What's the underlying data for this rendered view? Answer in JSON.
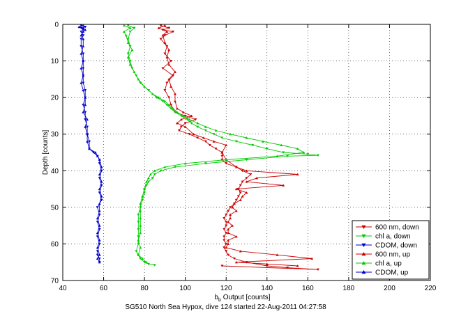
{
  "chart_data": {
    "type": "line",
    "title": "",
    "caption": "SG510 North Sea Hypox, dive 124 started 22-Aug-2011 04:27:58",
    "xlabel": "b_b Output [counts]",
    "xlabel_main": "b",
    "xlabel_sub": "b",
    "xlabel_rest": " Output [counts]",
    "ylabel": "Depth [counts]",
    "xlim": [
      40,
      220
    ],
    "ylim": [
      0,
      70
    ],
    "y_reversed": true,
    "xticks": [
      40,
      60,
      80,
      100,
      120,
      140,
      160,
      180,
      200,
      220
    ],
    "yticks": [
      0,
      10,
      20,
      30,
      40,
      50,
      60,
      70
    ],
    "grid": true,
    "legend_position": "lower-right",
    "series": [
      {
        "name": "600 nm, down",
        "color": "#cc0000",
        "marker": "triangle-down",
        "points": [
          [
            88,
            0.3
          ],
          [
            92,
            1
          ],
          [
            89,
            1.5
          ],
          [
            94,
            2
          ],
          [
            90,
            3
          ],
          [
            88,
            4
          ],
          [
            91,
            6
          ],
          [
            90,
            8
          ],
          [
            93,
            10
          ],
          [
            89,
            12
          ],
          [
            94,
            14
          ],
          [
            91,
            16
          ],
          [
            90,
            18
          ],
          [
            92,
            20
          ],
          [
            93,
            22
          ],
          [
            95,
            24
          ],
          [
            100,
            25
          ],
          [
            105,
            26
          ],
          [
            100,
            27
          ],
          [
            98,
            28
          ],
          [
            97,
            29
          ],
          [
            102,
            30
          ],
          [
            106,
            31
          ],
          [
            110,
            32
          ],
          [
            112,
            33
          ],
          [
            115,
            34
          ],
          [
            118,
            35
          ],
          [
            118,
            36
          ],
          [
            118,
            37
          ],
          [
            120,
            38
          ],
          [
            125,
            39
          ],
          [
            128,
            40
          ],
          [
            132,
            41
          ],
          [
            130,
            42
          ],
          [
            128,
            43
          ],
          [
            127,
            44
          ],
          [
            126,
            45
          ],
          [
            127,
            46
          ],
          [
            126,
            47
          ],
          [
            125,
            48
          ],
          [
            124,
            49
          ],
          [
            122,
            50
          ],
          [
            121,
            51
          ],
          [
            120,
            52
          ],
          [
            119,
            53
          ],
          [
            120,
            54
          ],
          [
            120,
            55
          ],
          [
            119,
            56
          ],
          [
            120,
            57
          ],
          [
            119,
            58
          ],
          [
            119,
            59
          ],
          [
            120,
            60
          ],
          [
            119,
            61
          ],
          [
            120,
            62
          ],
          [
            121,
            63
          ],
          [
            124,
            64
          ],
          [
            130,
            65
          ],
          [
            140,
            66
          ],
          [
            150,
            66.5
          ],
          [
            165,
            67
          ],
          [
            118,
            66
          ]
        ]
      },
      {
        "name": "chl a, down",
        "color": "#00cc00",
        "marker": "triangle-down",
        "points": [
          [
            72,
            0.3
          ],
          [
            75,
            1
          ],
          [
            73,
            2
          ],
          [
            72,
            4
          ],
          [
            73,
            6
          ],
          [
            72,
            8
          ],
          [
            73,
            10
          ],
          [
            74,
            12
          ],
          [
            76,
            14
          ],
          [
            78,
            16
          ],
          [
            82,
            18
          ],
          [
            86,
            20
          ],
          [
            89,
            21
          ],
          [
            91,
            22
          ],
          [
            93,
            23
          ],
          [
            95,
            24
          ],
          [
            98,
            25
          ],
          [
            101,
            26
          ],
          [
            103,
            27
          ],
          [
            106,
            28
          ],
          [
            110,
            29
          ],
          [
            114,
            30
          ],
          [
            118,
            31
          ],
          [
            125,
            32
          ],
          [
            133,
            33
          ],
          [
            140,
            34
          ],
          [
            148,
            35
          ],
          [
            160,
            35.5
          ],
          [
            165,
            35.8
          ],
          [
            150,
            36
          ],
          [
            130,
            37
          ],
          [
            110,
            38
          ],
          [
            95,
            39
          ],
          [
            88,
            40
          ],
          [
            85,
            41
          ],
          [
            84,
            42
          ],
          [
            82,
            43
          ],
          [
            81,
            44
          ],
          [
            80,
            45
          ],
          [
            80,
            46
          ],
          [
            79,
            48
          ],
          [
            78,
            50
          ],
          [
            77,
            52
          ],
          [
            77,
            54
          ],
          [
            77,
            56
          ],
          [
            77,
            58
          ],
          [
            77,
            60
          ],
          [
            76,
            62
          ],
          [
            77,
            63
          ],
          [
            78,
            64
          ],
          [
            80,
            65
          ],
          [
            82,
            65.5
          ],
          [
            85,
            65.8
          ]
        ]
      },
      {
        "name": "CDOM, down",
        "color": "#0000cc",
        "marker": "triangle-down",
        "points": [
          [
            49,
            0.3
          ],
          [
            51,
            0.7
          ],
          [
            49,
            1
          ],
          [
            50,
            1.5
          ],
          [
            49,
            2
          ],
          [
            50,
            3
          ],
          [
            49,
            4
          ],
          [
            49,
            6
          ],
          [
            50,
            8
          ],
          [
            50,
            10
          ],
          [
            50,
            12
          ],
          [
            50,
            14
          ],
          [
            50,
            16
          ],
          [
            51,
            18
          ],
          [
            51,
            20
          ],
          [
            50,
            22
          ],
          [
            51,
            24
          ],
          [
            51,
            26
          ],
          [
            52,
            28
          ],
          [
            52,
            30
          ],
          [
            53,
            32
          ],
          [
            53,
            34
          ],
          [
            55,
            35
          ],
          [
            57,
            36
          ],
          [
            58,
            37
          ],
          [
            58,
            38
          ],
          [
            59,
            40
          ],
          [
            58,
            42
          ],
          [
            59,
            44
          ],
          [
            58,
            46
          ],
          [
            59,
            48
          ],
          [
            57,
            50
          ],
          [
            58,
            52
          ],
          [
            57,
            54
          ],
          [
            58,
            56
          ],
          [
            57,
            58
          ],
          [
            58,
            60
          ],
          [
            57,
            62
          ],
          [
            57,
            63
          ],
          [
            58,
            64
          ],
          [
            58,
            65
          ]
        ]
      },
      {
        "name": "600 nm, up",
        "color": "#cc0000",
        "marker": "triangle-up",
        "points": [
          [
            90,
            0.3
          ],
          [
            87,
            1
          ],
          [
            91,
            2
          ],
          [
            89,
            3
          ],
          [
            90,
            5
          ],
          [
            92,
            7
          ],
          [
            91,
            9
          ],
          [
            92,
            11
          ],
          [
            95,
            13
          ],
          [
            92,
            15
          ],
          [
            93,
            17
          ],
          [
            95,
            19
          ],
          [
            95,
            21
          ],
          [
            96,
            23
          ],
          [
            99,
            24
          ],
          [
            103,
            25
          ],
          [
            98,
            26
          ],
          [
            96,
            27
          ],
          [
            100,
            28
          ],
          [
            104,
            30
          ],
          [
            109,
            31
          ],
          [
            114,
            32
          ],
          [
            120,
            33
          ],
          [
            118,
            35
          ],
          [
            120,
            37
          ],
          [
            125,
            39
          ],
          [
            130,
            40
          ],
          [
            155,
            41
          ],
          [
            135,
            42
          ],
          [
            130,
            43
          ],
          [
            148,
            44
          ],
          [
            125,
            45
          ],
          [
            130,
            46
          ],
          [
            128,
            47
          ],
          [
            127,
            48
          ],
          [
            124,
            49
          ],
          [
            123,
            50
          ],
          [
            125,
            51
          ],
          [
            122,
            52
          ],
          [
            122,
            53
          ],
          [
            121,
            54
          ],
          [
            123,
            55
          ],
          [
            121,
            56
          ],
          [
            121,
            57
          ],
          [
            125,
            58
          ],
          [
            121,
            59
          ],
          [
            121,
            60
          ],
          [
            120,
            61
          ],
          [
            127,
            62
          ],
          [
            145,
            63
          ],
          [
            162,
            64
          ],
          [
            125,
            65
          ],
          [
            140,
            65.5
          ],
          [
            155,
            66
          ]
        ]
      },
      {
        "name": "chl a, up",
        "color": "#00cc00",
        "marker": "triangle-up",
        "points": [
          [
            70,
            0.3
          ],
          [
            73,
            1
          ],
          [
            70,
            2
          ],
          [
            71,
            3
          ],
          [
            72,
            5
          ],
          [
            74,
            7
          ],
          [
            72,
            9
          ],
          [
            73,
            11
          ],
          [
            75,
            13
          ],
          [
            77,
            15
          ],
          [
            80,
            17
          ],
          [
            84,
            19
          ],
          [
            87,
            20
          ],
          [
            90,
            21
          ],
          [
            92,
            22
          ],
          [
            94,
            23
          ],
          [
            96,
            24
          ],
          [
            99,
            25
          ],
          [
            102,
            26
          ],
          [
            106,
            27
          ],
          [
            110,
            28
          ],
          [
            115,
            29
          ],
          [
            122,
            30
          ],
          [
            130,
            31
          ],
          [
            138,
            32
          ],
          [
            147,
            33
          ],
          [
            155,
            34
          ],
          [
            158,
            35
          ],
          [
            145,
            36
          ],
          [
            120,
            37
          ],
          [
            100,
            38
          ],
          [
            90,
            39
          ],
          [
            85,
            40
          ],
          [
            83,
            41
          ],
          [
            82,
            42
          ],
          [
            81,
            43
          ],
          [
            80,
            45
          ],
          [
            79,
            47
          ],
          [
            78,
            49
          ],
          [
            78,
            51
          ],
          [
            78,
            53
          ],
          [
            78,
            55
          ],
          [
            78,
            57
          ],
          [
            77,
            59
          ],
          [
            78,
            61
          ],
          [
            77,
            63
          ],
          [
            79,
            64
          ],
          [
            81,
            65
          ]
        ]
      },
      {
        "name": "CDOM, up",
        "color": "#0000cc",
        "marker": "triangle-up",
        "points": [
          [
            50,
            0.3
          ],
          [
            48,
            0.7
          ],
          [
            50,
            1
          ],
          [
            51,
            1.5
          ],
          [
            50,
            2
          ],
          [
            49,
            3
          ],
          [
            50,
            4
          ],
          [
            50,
            6
          ],
          [
            49,
            8
          ],
          [
            50,
            10
          ],
          [
            49,
            12
          ],
          [
            50,
            14
          ],
          [
            49,
            16
          ],
          [
            50,
            18
          ],
          [
            51,
            20
          ],
          [
            51,
            22
          ],
          [
            50,
            24
          ],
          [
            52,
            26
          ],
          [
            51,
            28
          ],
          [
            52,
            30
          ],
          [
            52,
            32
          ],
          [
            53,
            34
          ],
          [
            56,
            35
          ],
          [
            57,
            36
          ],
          [
            58,
            37
          ],
          [
            59,
            39
          ],
          [
            58,
            41
          ],
          [
            59,
            43
          ],
          [
            58,
            45
          ],
          [
            59,
            47
          ],
          [
            58,
            49
          ],
          [
            58,
            51
          ],
          [
            57,
            53
          ],
          [
            58,
            55
          ],
          [
            57,
            57
          ],
          [
            58,
            59
          ],
          [
            57,
            61
          ],
          [
            58,
            63
          ],
          [
            57,
            64
          ],
          [
            58,
            65
          ]
        ]
      }
    ]
  }
}
